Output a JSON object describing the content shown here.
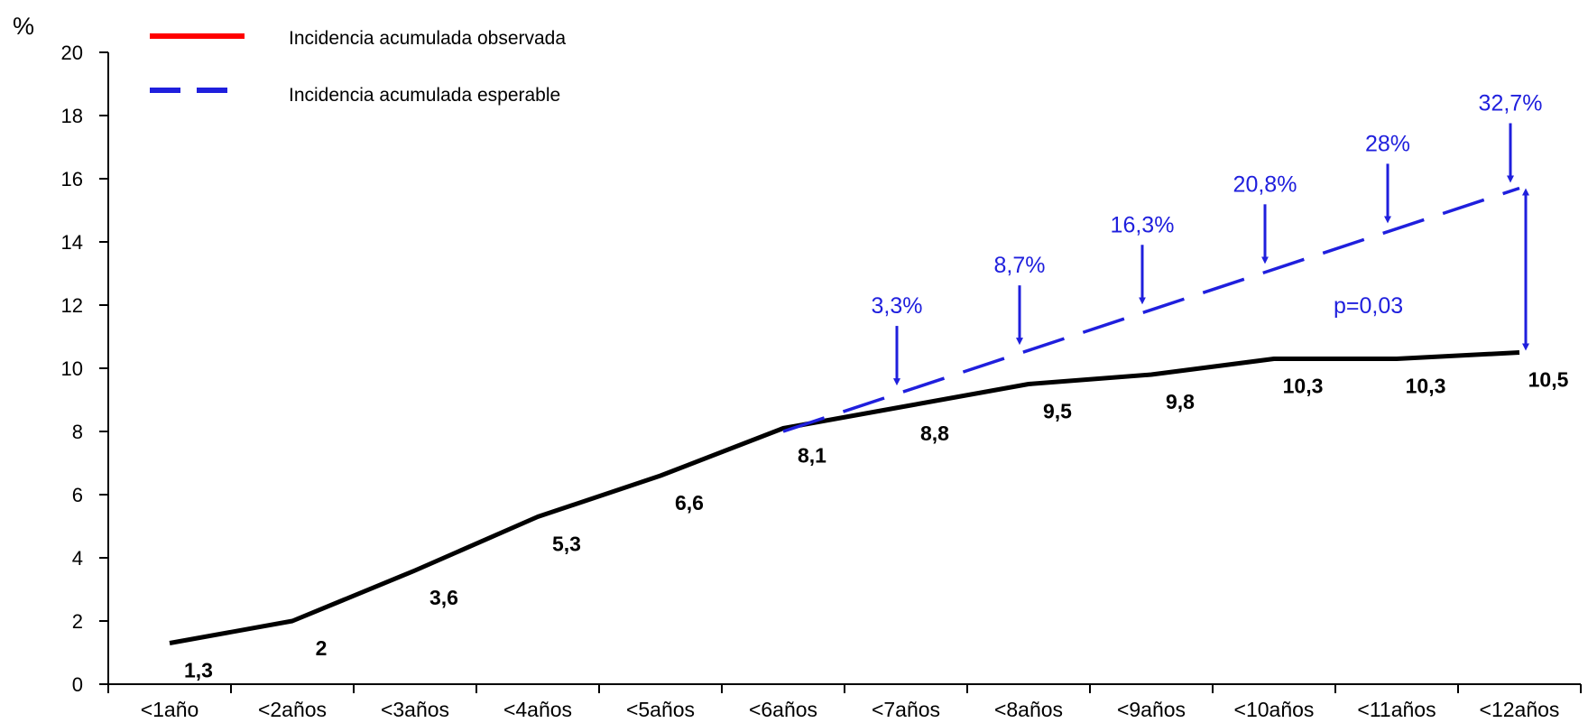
{
  "chart_data": {
    "type": "line",
    "ylabel": "%",
    "xlabel": "",
    "ylim": [
      0,
      20
    ],
    "yticks": [
      0,
      2,
      4,
      6,
      8,
      10,
      12,
      14,
      16,
      18,
      20
    ],
    "categories": [
      "<1año",
      "<2años",
      "<3años",
      "<4años",
      "<5años",
      "<6años",
      "<7años",
      "<8años",
      "<9años",
      "<10años",
      "<11años",
      "<12años"
    ],
    "grid": false,
    "legend_position": "top-left",
    "series": [
      {
        "name": "Incidencia acumulada observada",
        "legend_color": "#ff0000",
        "color": "#000000",
        "style": "solid",
        "x": [
          0,
          1,
          2,
          3,
          4,
          5,
          6,
          7,
          8,
          9,
          10,
          11
        ],
        "values": [
          1.3,
          2,
          3.6,
          5.3,
          6.6,
          8.1,
          8.8,
          9.5,
          9.8,
          10.3,
          10.3,
          10.5
        ],
        "labels": [
          "1,3",
          "2",
          "3,6",
          "5,3",
          "6,6",
          "8,1",
          "8,8",
          "9,5",
          "9,8",
          "10,3",
          "10,3",
          "10,5"
        ]
      },
      {
        "name": "Incidencia acumulada esperable",
        "color": "#1f1fdd",
        "style": "dashed",
        "x": [
          5,
          11
        ],
        "values": [
          8.0,
          15.7
        ]
      }
    ],
    "annotations": [
      {
        "text": "3,3%",
        "category_index": 6
      },
      {
        "text": "8,7%",
        "category_index": 7
      },
      {
        "text": "16,3%",
        "category_index": 8
      },
      {
        "text": "20,8%",
        "category_index": 9
      },
      {
        "text": "28%",
        "category_index": 10
      },
      {
        "text": "32,7%",
        "category_index": 11
      }
    ],
    "p_value_text": "p=0,03"
  }
}
